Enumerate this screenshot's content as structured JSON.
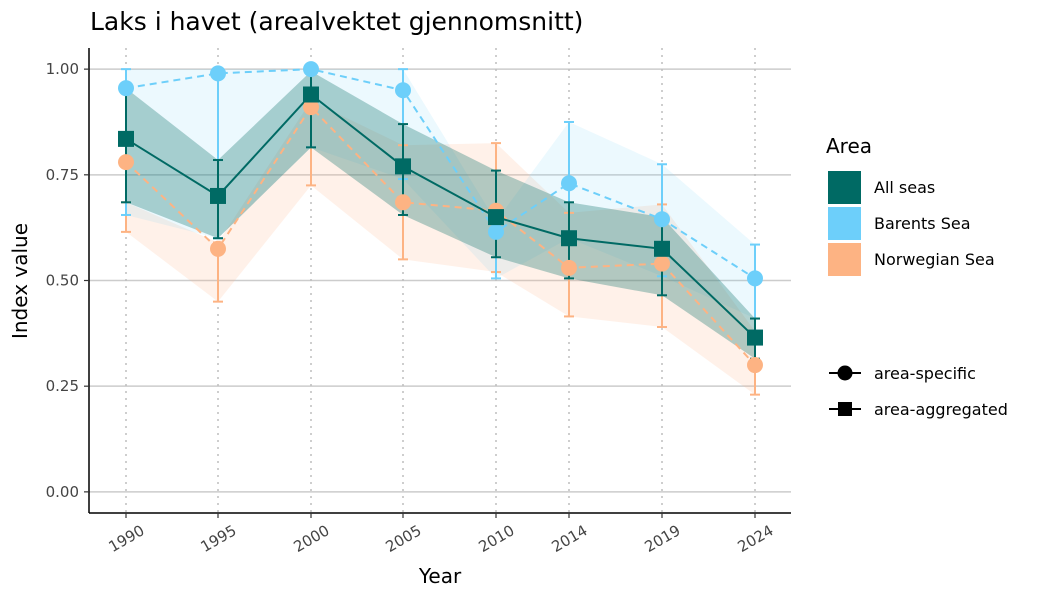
{
  "colors": {
    "all": "#006a64",
    "barents": "#6dcffa",
    "norwegian": "#fdb383",
    "grid": "#cccccc",
    "vgrid": "#bdbdbd"
  },
  "chart_data": {
    "type": "line",
    "title": "Laks i havet (arealvektet gjennomsnitt)",
    "xlabel": "Year",
    "ylabel": "Index value",
    "ylim": [
      -0.05,
      1.05
    ],
    "yticks": [
      0,
      0.25,
      0.5,
      0.75,
      1.0
    ],
    "ytick_labels": [
      "0.00",
      "0.25",
      "0.50",
      "0.75",
      "1.00"
    ],
    "categories": [
      "1990",
      "1995",
      "2000",
      "2005",
      "2010",
      "2014",
      "2019",
      "2024"
    ],
    "series": [
      {
        "key": "norwegian",
        "name": "Norwegian Sea",
        "type": "area-specific",
        "values": [
          0.78,
          0.575,
          0.91,
          0.685,
          0.665,
          0.53,
          0.54,
          0.3
        ],
        "lower": [
          0.615,
          0.45,
          0.725,
          0.55,
          0.52,
          0.415,
          0.39,
          0.23
        ],
        "upper": [
          0.685,
          0.59,
          0.925,
          0.82,
          0.825,
          0.66,
          0.68,
          0.38
        ]
      },
      {
        "key": "barents",
        "name": "Barents Sea",
        "type": "area-specific",
        "values": [
          0.955,
          0.99,
          1.0,
          0.95,
          0.615,
          0.73,
          0.645,
          0.505
        ],
        "lower": [
          0.655,
          0.6,
          0.815,
          0.74,
          0.505,
          0.6,
          0.51,
          0.41
        ],
        "upper": [
          1.0,
          1.0,
          1.0,
          1.0,
          0.64,
          0.875,
          0.775,
          0.585
        ]
      },
      {
        "key": "all",
        "name": "All seas",
        "type": "area-aggregated",
        "values": [
          0.835,
          0.7,
          0.94,
          0.77,
          0.65,
          0.6,
          0.575,
          0.365
        ],
        "lower": [
          0.685,
          0.6,
          0.815,
          0.655,
          0.555,
          0.505,
          0.465,
          0.315
        ],
        "upper": [
          0.955,
          0.785,
          0.995,
          0.87,
          0.76,
          0.685,
          0.65,
          0.41
        ]
      }
    ],
    "legend": {
      "title": "Area",
      "entries": [
        {
          "key": "all",
          "label": "All seas"
        },
        {
          "key": "barents",
          "label": "Barents Sea"
        },
        {
          "key": "norwegian",
          "label": "Norwegian Sea"
        }
      ],
      "shape_entries": [
        "area-specific",
        "area-aggregated"
      ]
    }
  }
}
